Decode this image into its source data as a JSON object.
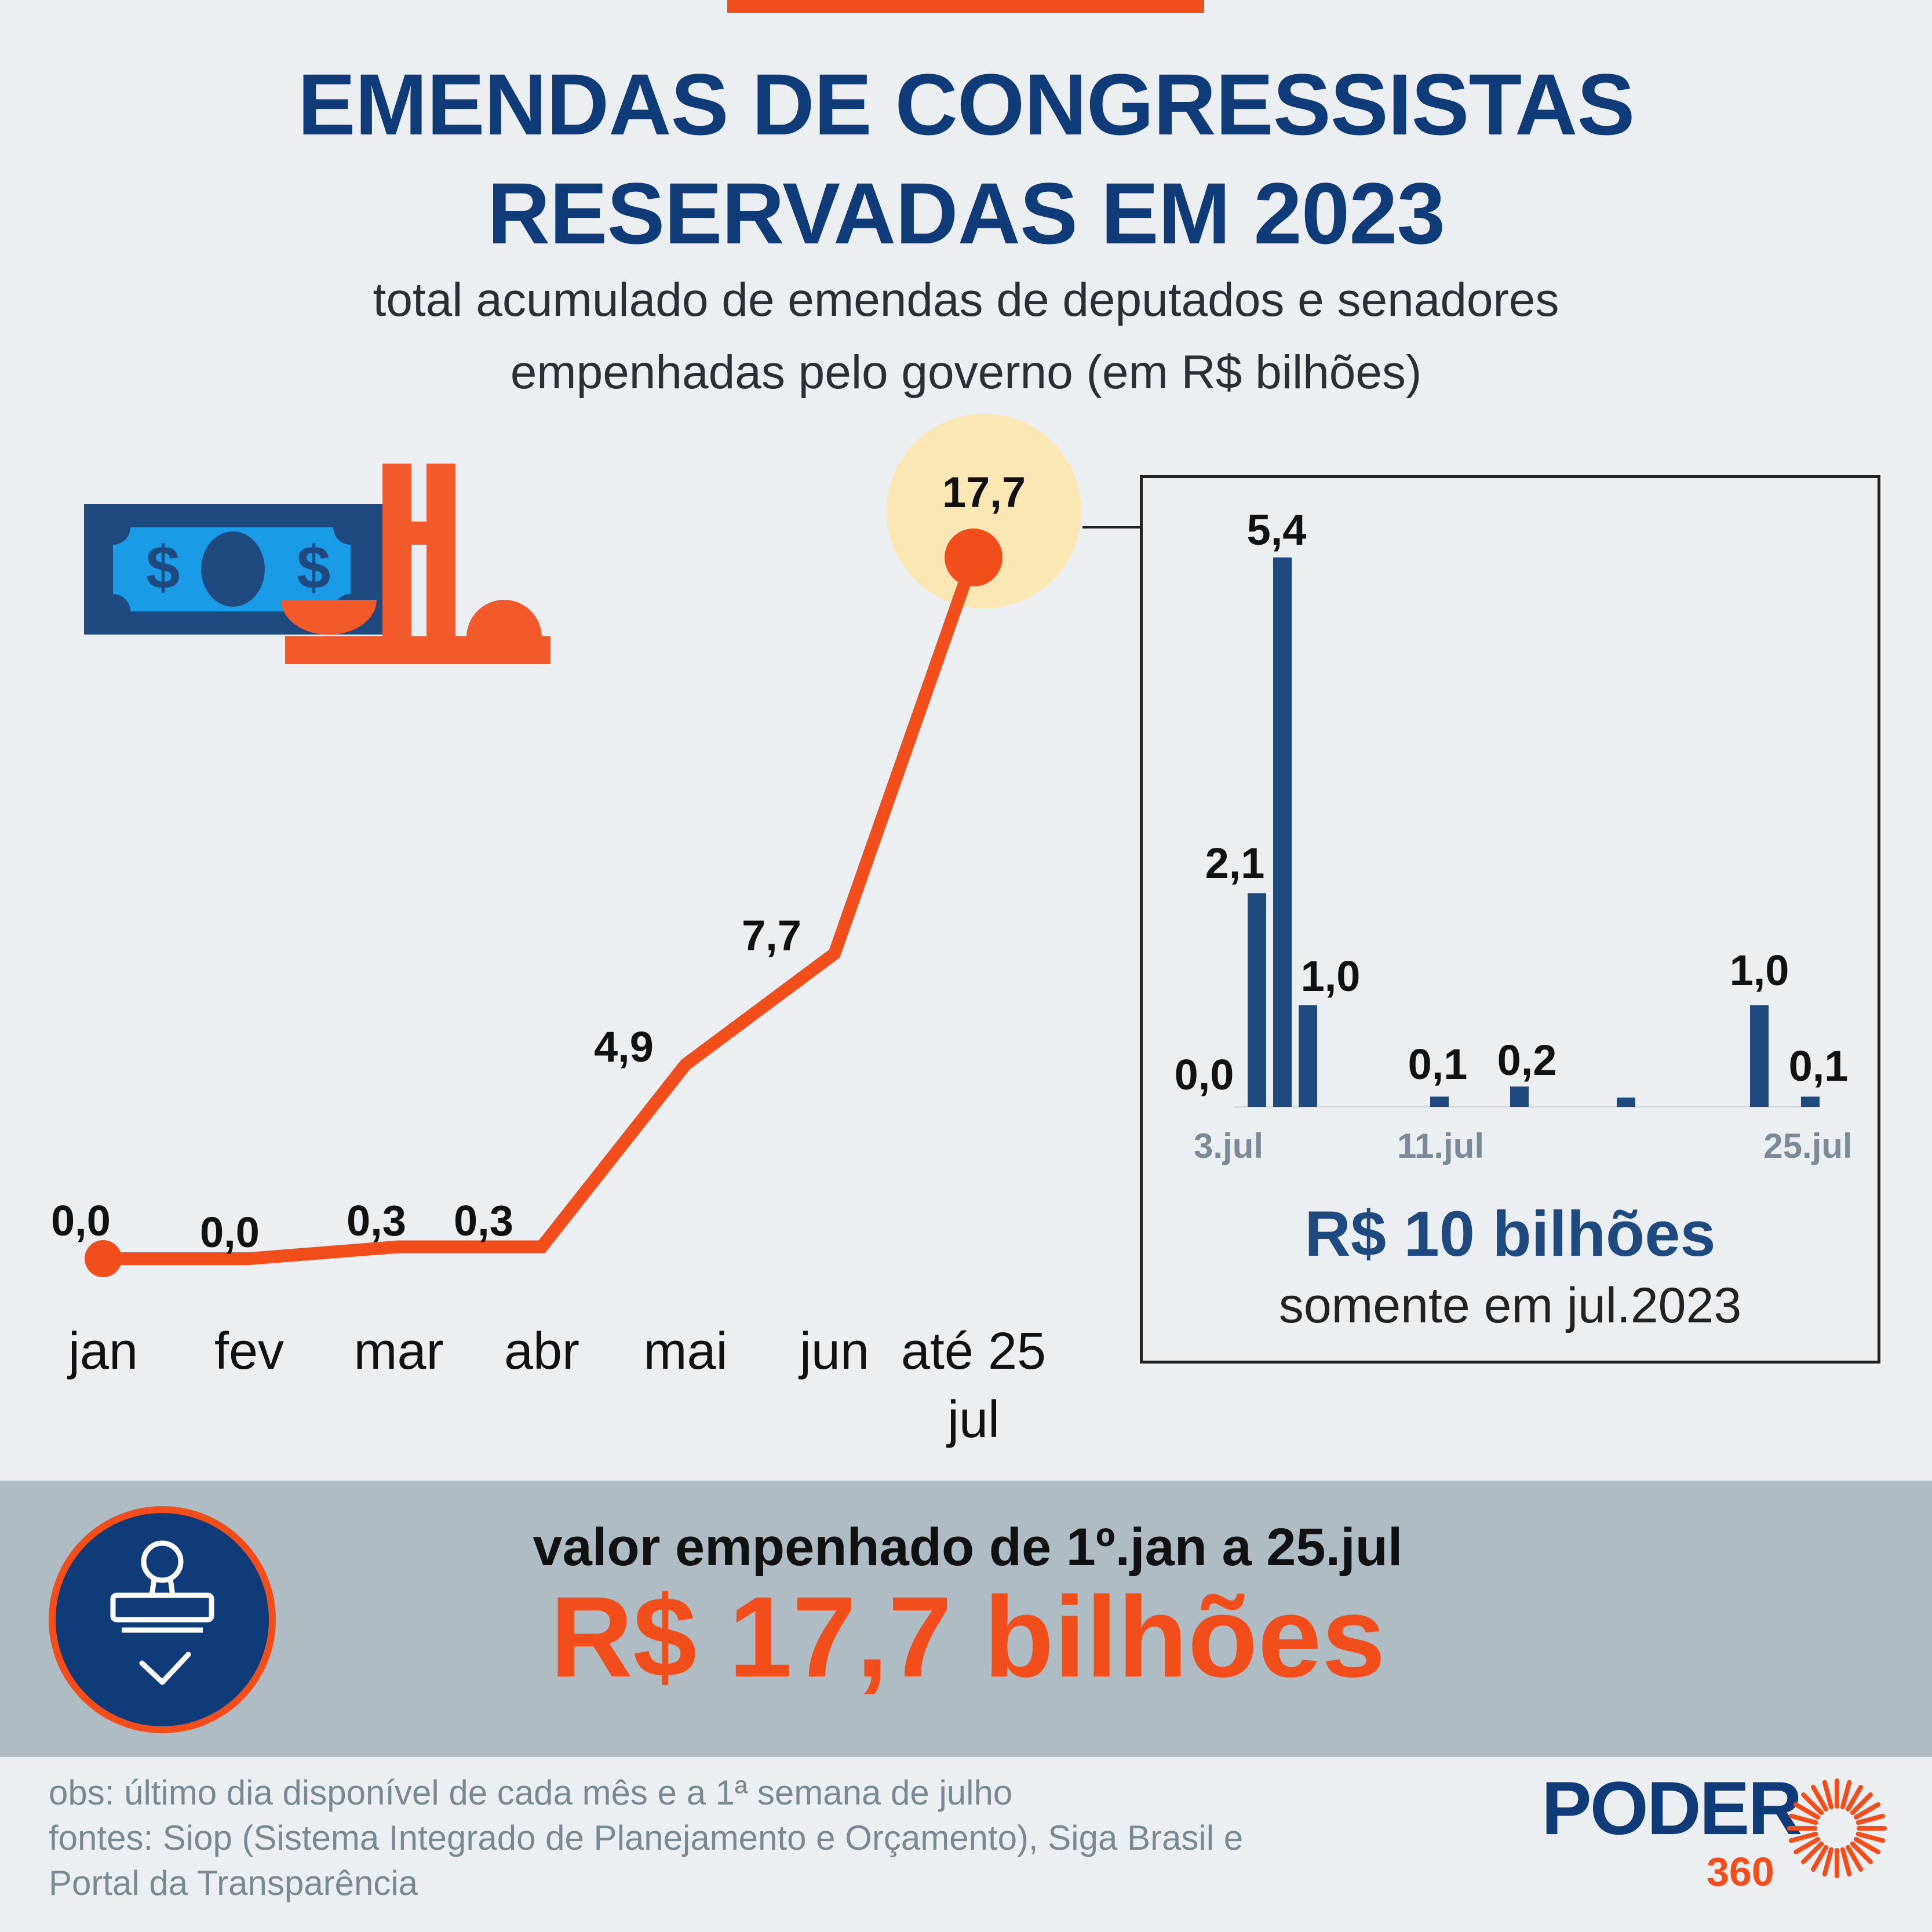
{
  "title": {
    "line1": "EMENDAS DE CONGRESSISTAS",
    "line2": "RESERVADAS EM 2023"
  },
  "subtitle": {
    "line1": "total acumulado de emendas de deputados e senadores",
    "line2": "empenhadas pelo governo (em R$ bilhões)"
  },
  "colors": {
    "title": "#0F3C78",
    "line": "#F24E1B",
    "bars": "#1F4A80",
    "highlight": "#FBE7B3",
    "band": "#AFBCC4"
  },
  "icons": [
    "money-bill-icon",
    "congress-building-icon",
    "stamp-icon",
    "checkmark-icon",
    "sunburst-logo-icon"
  ],
  "chart_data": [
    {
      "type": "line",
      "categories": [
        "jan",
        "fev",
        "mar",
        "abr",
        "mai",
        "jun",
        "até 25 jul"
      ],
      "values": [
        0.0,
        0.0,
        0.3,
        0.3,
        4.9,
        7.7,
        17.7
      ],
      "value_labels": [
        "0,0",
        "0,0",
        "0,3",
        "0,3",
        "4,9",
        "7,7",
        "17,7"
      ],
      "category_lines": [
        [
          "jan"
        ],
        [
          "fev"
        ],
        [
          "mar"
        ],
        [
          "abr"
        ],
        [
          "mai"
        ],
        [
          "jun"
        ],
        [
          "até 25",
          "jul"
        ]
      ],
      "ylim": [
        0,
        17.7
      ],
      "grid": false,
      "highlight_last": true
    },
    {
      "type": "bar",
      "values": [
        0.0,
        2.1,
        5.4,
        1.0,
        0.1,
        0.2,
        0.1,
        1.0,
        0.1
      ],
      "labels": [
        "0,0",
        "2,1",
        "5,4",
        "1,0",
        "0,1",
        "0,2",
        "",
        "1,0",
        "0,1"
      ],
      "x_ticks": [
        "3.jul",
        "11.jul",
        "25.jul"
      ],
      "ylim": [
        0,
        5.4
      ],
      "total_label": "R$ 10 bilhões",
      "total_note": "somente em jul.2023"
    }
  ],
  "summary": {
    "label": "valor empenhado de 1º.jan a 25.jul",
    "value": "R$ 17,7 bilhões"
  },
  "footer": {
    "obs": "obs: último dia disponível de cada mês e a 1ª semana de julho",
    "sources1": "fontes: Siop (Sistema Integrado de Planejamento e Orçamento), Siga Brasil e",
    "sources2": "Portal da Transparência"
  },
  "logo": {
    "name": "PODER",
    "number": "360"
  }
}
